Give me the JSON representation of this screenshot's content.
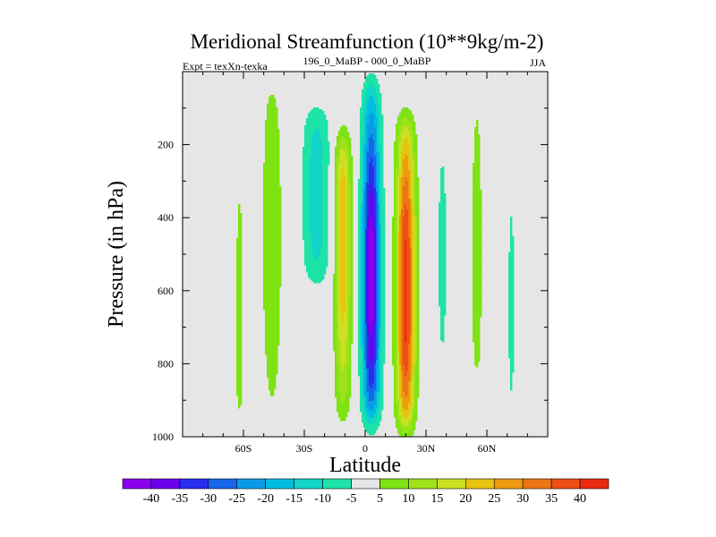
{
  "chart_data": {
    "type": "contour",
    "title": "Meridional Streamfunction (10**9kg/m-2)",
    "left_label": "Expt = texXn-texka",
    "center_label": "196_0_MaBP - 000_0_MaBP",
    "right_label": "JJA",
    "xlabel": "Latitude",
    "ylabel": "Pressure (in hPa)",
    "xlim": [
      -90,
      90
    ],
    "ylim": [
      1000,
      0
    ],
    "x_ticks": [
      {
        "value": -60,
        "label": "60S"
      },
      {
        "value": -30,
        "label": "30S"
      },
      {
        "value": 0,
        "label": "0"
      },
      {
        "value": 30,
        "label": "30N"
      },
      {
        "value": 60,
        "label": "60N"
      }
    ],
    "y_ticks": [
      {
        "value": 200,
        "label": "200"
      },
      {
        "value": 400,
        "label": "400"
      },
      {
        "value": 600,
        "label": "600"
      },
      {
        "value": 800,
        "label": "800"
      },
      {
        "value": 1000,
        "label": "1000"
      }
    ],
    "contour_levels": [
      -40,
      -35,
      -30,
      -25,
      -20,
      -15,
      -10,
      -5,
      5,
      10,
      15,
      20,
      25,
      30,
      35,
      40
    ],
    "colorbar_labels": [
      "-40",
      "-35",
      "-30",
      "-25",
      "-20",
      "-15",
      "-10",
      "-5",
      "5",
      "10",
      "15",
      "20",
      "25",
      "30",
      "35",
      "40"
    ],
    "colorbar_colors": [
      "#8a00ef",
      "#6a00ee",
      "#2a2ef0",
      "#1766e9",
      "#0b9be6",
      "#00bde3",
      "#11d5c8",
      "#1ee3a8",
      "#e6e6e6",
      "#7ee312",
      "#9fe21a",
      "#cce022",
      "#e8c40f",
      "#ed9b10",
      "#ee7513",
      "#ef4e14",
      "#e92a0f"
    ],
    "background_color": "#e6e6e6",
    "features": [
      {
        "name": "tropical-negative-cell",
        "center_lat": 3,
        "center_p": 560,
        "lat_halfwidth": 4.5,
        "p_top": 20,
        "p_bottom": 960,
        "peak": -42
      },
      {
        "name": "tropical-positive-cell",
        "center_lat": 20,
        "center_p": 600,
        "lat_halfwidth": 4.5,
        "p_top": 120,
        "p_bottom": 980,
        "peak": 41
      },
      {
        "name": "southern-positive-cell",
        "center_lat": -11,
        "center_p": 460,
        "lat_halfwidth": 4,
        "p_top": 170,
        "p_bottom": 960,
        "peak": 23
      },
      {
        "name": "southern-negative-band",
        "center_lat": -24,
        "center_p": 330,
        "lat_halfwidth": 7,
        "p_top": 100,
        "p_bottom": 580,
        "peak": -12
      },
      {
        "name": "southern-midlat-positive",
        "center_lat": -46,
        "center_p": 450,
        "lat_halfwidth": 5,
        "p_top": 20,
        "p_bottom": 990,
        "peak": 10
      },
      {
        "name": "southern-highlat-positive",
        "center_lat": -62,
        "center_p": 700,
        "lat_halfwidth": 2,
        "p_top": 300,
        "p_bottom": 950,
        "peak": 8
      },
      {
        "name": "northern-negative-band",
        "center_lat": 38,
        "center_p": 500,
        "lat_halfwidth": 3.5,
        "p_top": 100,
        "p_bottom": 880,
        "peak": -6
      },
      {
        "name": "northern-positive-band",
        "center_lat": 55,
        "center_p": 500,
        "lat_halfwidth": 3,
        "p_top": 20,
        "p_bottom": 860,
        "peak": 8
      },
      {
        "name": "northern-highlat-negative",
        "center_lat": 72,
        "center_p": 640,
        "lat_halfwidth": 2.5,
        "p_top": 270,
        "p_bottom": 970,
        "peak": -6
      }
    ]
  }
}
